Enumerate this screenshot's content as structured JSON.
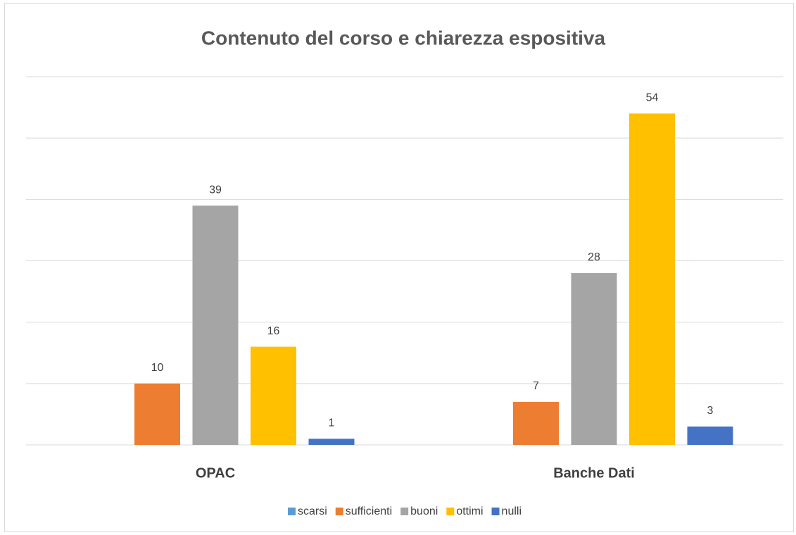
{
  "chart_data": {
    "type": "bar",
    "title": "Contenuto del corso e chiarezza espositiva",
    "categories": [
      "OPAC",
      "Banche Dati"
    ],
    "series": [
      {
        "name": "scarsi",
        "color": "#5b9bd5",
        "values": [
          null,
          null
        ]
      },
      {
        "name": "sufficienti",
        "color": "#ed7d31",
        "values": [
          10,
          7
        ]
      },
      {
        "name": "buoni",
        "color": "#a5a5a5",
        "values": [
          39,
          28
        ]
      },
      {
        "name": "ottimi",
        "color": "#ffc000",
        "values": [
          16,
          54
        ]
      },
      {
        "name": "nulli",
        "color": "#4472c4",
        "values": [
          1,
          3
        ]
      }
    ],
    "ylim": [
      0,
      60
    ],
    "yticks": [
      0,
      10,
      20,
      30,
      40,
      50,
      60
    ],
    "grid": true,
    "legend": "bottom"
  }
}
